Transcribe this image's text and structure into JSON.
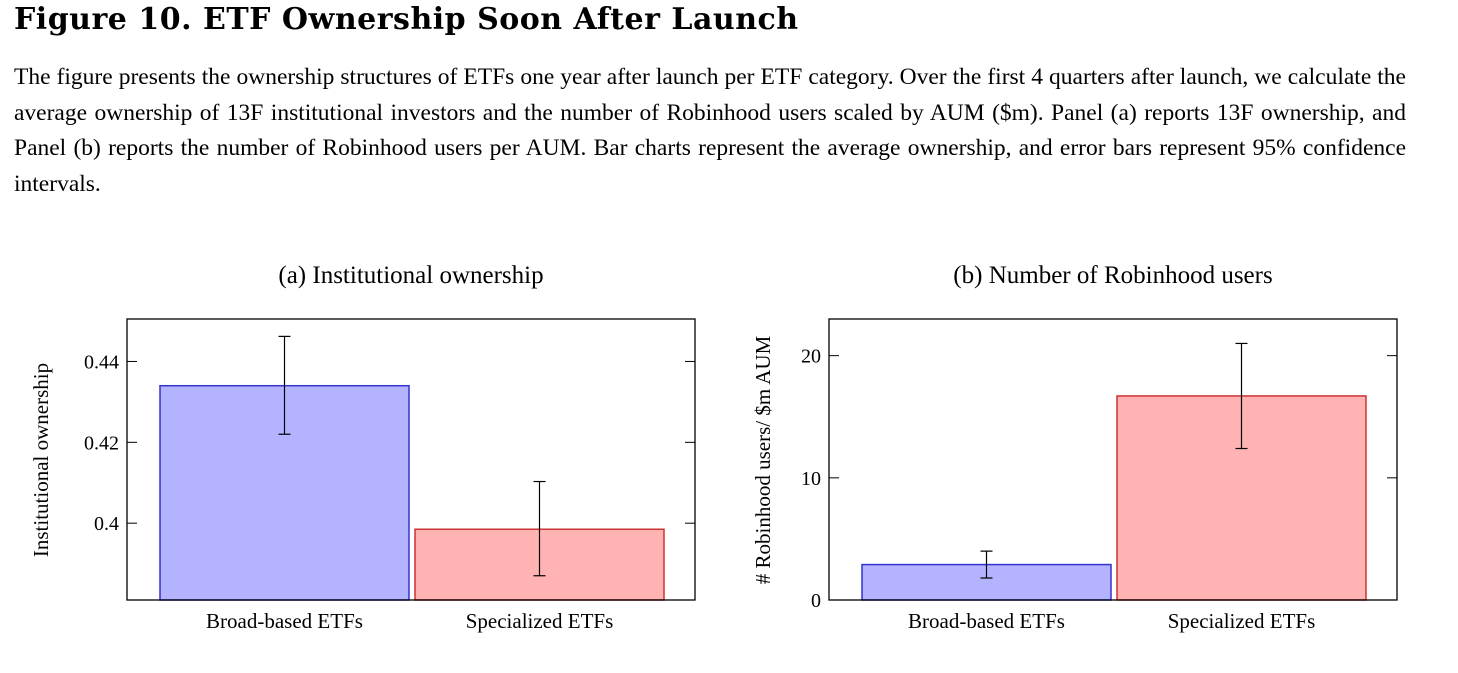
{
  "figure": {
    "title": "Figure 10. ETF Ownership Soon After Launch",
    "caption": "The figure presents the ownership structures of ETFs one year after launch per ETF category. Over the first 4 quarters after launch, we calculate the average ownership of 13F institutional investors and the number of Robinhood users scaled by AUM ($m). Panel (a) reports 13F ownership, and Panel (b) reports the number of Robinhood users per AUM. Bar charts represent the average ownership, and error bars represent 95% confidence intervals."
  },
  "colors": {
    "broad_fill": "#b3b3ff",
    "broad_stroke": "#3333cc",
    "special_fill": "#ffb3b3",
    "special_stroke": "#cc3333"
  },
  "chart_data": [
    {
      "type": "bar",
      "title": "(a) Institutional ownership",
      "xlabel": "",
      "ylabel": "Institutional ownership",
      "categories": [
        "Broad-based ETFs",
        "Specialized ETFs"
      ],
      "values": [
        0.434,
        0.3985
      ],
      "error_low": [
        0.422,
        0.387
      ],
      "error_high": [
        0.4462,
        0.4103
      ],
      "ylim": [
        0.381,
        0.4505
      ],
      "yticks": [
        0.4,
        0.42,
        0.44
      ],
      "ytick_labels": [
        "0.4",
        "0.42",
        "0.44"
      ],
      "grid": false,
      "legend": "none"
    },
    {
      "type": "bar",
      "title": "(b) Number of Robinhood users",
      "xlabel": "",
      "ylabel": "# Robinhood users/ $m AUM",
      "categories": [
        "Broad-based ETFs",
        "Specialized ETFs"
      ],
      "values": [
        2.9,
        16.7
      ],
      "error_low": [
        1.8,
        12.4
      ],
      "error_high": [
        4.0,
        21.0
      ],
      "ylim": [
        0,
        23.0
      ],
      "yticks": [
        0,
        10,
        20
      ],
      "ytick_labels": [
        "0",
        "10",
        "20"
      ],
      "grid": false,
      "legend": "none"
    }
  ]
}
